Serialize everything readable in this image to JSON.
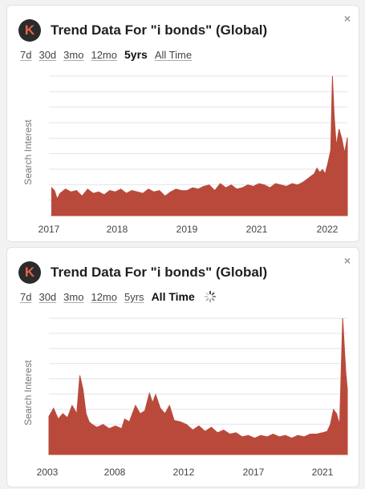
{
  "panels": [
    {
      "title": "Trend Data For \"i bonds\" (Global)",
      "logo_letter": "K",
      "close_icon": "×",
      "ranges": [
        "7d",
        "30d",
        "3mo",
        "12mo",
        "5yrs",
        "All Time"
      ],
      "active_range": "5yrs",
      "loading": false,
      "colors": {
        "area": "#b94a3b",
        "grid": "#e2e2ef"
      },
      "chart_data": {
        "type": "area",
        "ylabel": "Search Interest",
        "x_ticks": [
          "2017",
          "2018",
          "2019",
          "2021",
          "2022"
        ],
        "x_range": [
          2016.9,
          2022.3
        ],
        "ylim": [
          0,
          100
        ],
        "x": [
          2016.95,
          2017.0,
          2017.05,
          2017.1,
          2017.2,
          2017.3,
          2017.4,
          2017.5,
          2017.6,
          2017.7,
          2017.8,
          2017.9,
          2018.0,
          2018.1,
          2018.2,
          2018.3,
          2018.4,
          2018.5,
          2018.6,
          2018.7,
          2018.8,
          2018.9,
          2019.0,
          2019.1,
          2019.2,
          2019.3,
          2019.4,
          2019.5,
          2019.6,
          2019.7,
          2019.8,
          2019.9,
          2020.0,
          2020.1,
          2020.2,
          2020.3,
          2020.4,
          2020.5,
          2020.6,
          2020.7,
          2020.8,
          2020.9,
          2021.0,
          2021.1,
          2021.2,
          2021.3,
          2021.4,
          2021.5,
          2021.6,
          2021.7,
          2021.75,
          2021.8,
          2021.85,
          2021.9,
          2021.95,
          2022.0,
          2022.03,
          2022.06,
          2022.1,
          2022.15,
          2022.2,
          2022.25,
          2022.3
        ],
        "values": [
          20,
          18,
          12,
          16,
          19,
          17,
          18,
          14,
          19,
          16,
          17,
          15,
          18,
          17,
          19,
          16,
          18,
          17,
          16,
          19,
          17,
          18,
          14,
          17,
          19,
          18,
          18,
          20,
          19,
          21,
          22,
          18,
          23,
          20,
          22,
          19,
          20,
          22,
          21,
          23,
          22,
          20,
          23,
          22,
          21,
          23,
          22,
          24,
          27,
          30,
          34,
          31,
          33,
          30,
          38,
          47,
          100,
          72,
          50,
          62,
          55,
          45,
          56
        ]
      }
    },
    {
      "title": "Trend Data For \"i bonds\" (Global)",
      "logo_letter": "K",
      "close_icon": "×",
      "ranges": [
        "7d",
        "30d",
        "3mo",
        "12mo",
        "5yrs",
        "All Time"
      ],
      "active_range": "All Time",
      "loading": true,
      "colors": {
        "area": "#b94a3b",
        "grid": "#e2e2ef"
      },
      "chart_data": {
        "type": "area",
        "ylabel": "Search Interest",
        "x_ticks": [
          "2003",
          "2008",
          "2012",
          "2017",
          "2021"
        ],
        "x_range": [
          2003.0,
          2022.3
        ],
        "ylim": [
          0,
          100
        ],
        "x": [
          2003.0,
          2003.3,
          2003.6,
          2003.9,
          2004.2,
          2004.5,
          2004.8,
          2005.0,
          2005.2,
          2005.4,
          2005.6,
          2005.8,
          2006.1,
          2006.5,
          2006.9,
          2007.3,
          2007.7,
          2007.9,
          2008.2,
          2008.6,
          2008.9,
          2009.2,
          2009.5,
          2009.7,
          2009.9,
          2010.2,
          2010.5,
          2010.8,
          2011.1,
          2011.5,
          2011.9,
          2012.3,
          2012.7,
          2013.1,
          2013.5,
          2013.9,
          2014.3,
          2014.7,
          2015.1,
          2015.5,
          2015.9,
          2016.3,
          2016.7,
          2017.1,
          2017.5,
          2017.9,
          2018.3,
          2018.7,
          2019.1,
          2019.5,
          2019.9,
          2020.3,
          2020.7,
          2021.0,
          2021.2,
          2021.4,
          2021.6,
          2021.8,
          2022.0,
          2022.1,
          2022.2,
          2022.3
        ],
        "values": [
          28,
          34,
          26,
          30,
          27,
          36,
          30,
          58,
          48,
          30,
          24,
          22,
          20,
          22,
          19,
          21,
          19,
          26,
          24,
          36,
          30,
          32,
          45,
          38,
          44,
          34,
          30,
          36,
          25,
          24,
          22,
          18,
          21,
          17,
          20,
          16,
          18,
          15,
          16,
          13,
          14,
          12,
          14,
          13,
          15,
          13,
          14,
          12,
          14,
          13,
          15,
          15,
          16,
          17,
          22,
          33,
          30,
          22,
          100,
          80,
          60,
          48
        ]
      }
    }
  ]
}
